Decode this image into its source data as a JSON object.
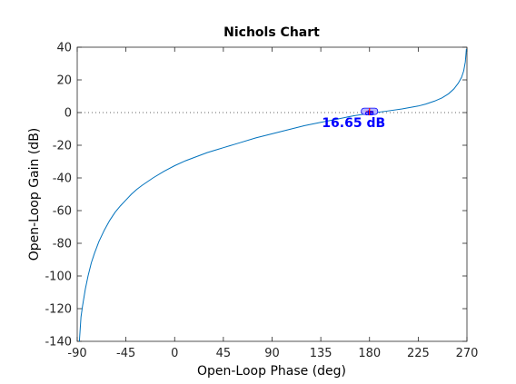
{
  "chart_data": {
    "type": "line",
    "title": "Nichols Chart",
    "xlabel": "Open-Loop Phase (deg)",
    "ylabel": "Open-Loop Gain (dB)",
    "xlim": [
      -90,
      270
    ],
    "ylim": [
      -140,
      40
    ],
    "xticks": [
      -90,
      -45,
      0,
      45,
      90,
      135,
      180,
      225,
      270
    ],
    "yticks": [
      40,
      20,
      0,
      -20,
      -40,
      -60,
      -80,
      -100,
      -120,
      -140
    ],
    "grid": false,
    "reference_line": {
      "y": 0,
      "style": "dotted"
    },
    "series": [
      {
        "color": "#0072bd",
        "x": [
          -88,
          -86.5,
          -85,
          -82.5,
          -80,
          -77,
          -74,
          -70,
          -65,
          -60,
          -55,
          -50,
          -45,
          -40,
          -35,
          -30,
          -20,
          -10,
          0,
          10,
          20,
          30,
          40,
          45,
          60,
          75,
          90,
          105,
          120,
          135,
          150,
          165,
          180,
          195,
          210,
          225,
          232,
          240,
          247,
          253,
          258,
          262,
          265,
          267,
          268.5,
          269.5
        ],
        "y": [
          -140,
          -125,
          -118,
          -108,
          -100,
          -92,
          -86,
          -79,
          -72,
          -66,
          -61,
          -57,
          -53.5,
          -50,
          -47,
          -44.5,
          -40,
          -36,
          -32.5,
          -29.5,
          -27,
          -24.5,
          -22.5,
          -21.5,
          -18.5,
          -15.5,
          -13,
          -10.5,
          -8,
          -6,
          -4,
          -2,
          -0.5,
          0.8,
          2.2,
          4,
          5.2,
          7,
          9,
          11.5,
          14.5,
          18,
          21.5,
          25.5,
          31,
          39
        ]
      }
    ],
    "annotations": [
      {
        "text": "16.65 dB",
        "x": 136,
        "y": -6,
        "color": "#0000ff"
      },
      {
        "text": "dB",
        "x": 180,
        "y": 0,
        "color": "#0000ff"
      }
    ],
    "marker": {
      "x": 180,
      "y": 0.5,
      "color": "#ff0000"
    }
  }
}
